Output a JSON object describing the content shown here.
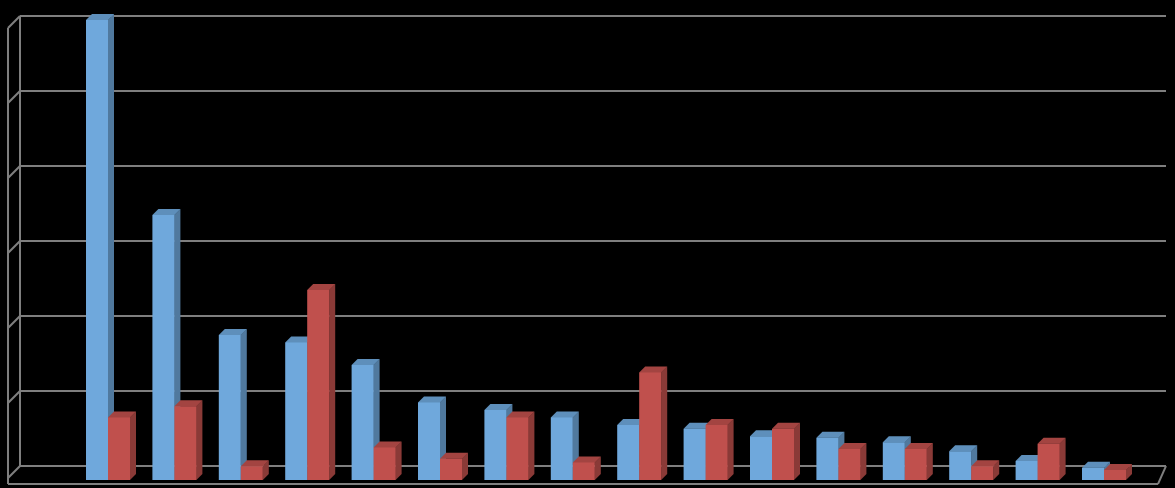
{
  "chart_data": {
    "type": "bar",
    "style": "3d-clustered-column",
    "categories": [
      "",
      "",
      "",
      "",
      "",
      "",
      "",
      "",
      "",
      "",
      "",
      "",
      "",
      "",
      "",
      ""
    ],
    "series": [
      {
        "color": "#6fa8dc",
        "values": [
          6.0,
          3.4,
          1.8,
          1.7,
          1.4,
          0.9,
          0.8,
          0.7,
          0.6,
          0.55,
          0.45,
          0.43,
          0.37,
          0.25,
          0.12,
          0.03
        ]
      },
      {
        "color": "#c0504d",
        "values": [
          0.7,
          0.85,
          0.05,
          2.4,
          0.3,
          0.15,
          0.7,
          0.1,
          1.3,
          0.6,
          0.55,
          0.28,
          0.28,
          0.05,
          0.35,
          0.0
        ]
      }
    ],
    "ylim": [
      0,
      6
    ],
    "gridlines": true,
    "gridline_count": 6,
    "legend": "none",
    "background": "#000000",
    "grid_color": "#7f7f7f"
  }
}
